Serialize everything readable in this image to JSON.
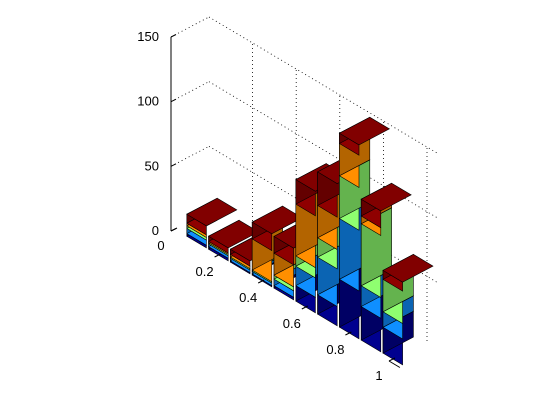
{
  "chart_data": {
    "type": "bar",
    "style": "3d-stacked",
    "x": [
      0.1,
      0.2,
      0.3,
      0.4,
      0.5,
      0.6,
      0.7,
      0.8,
      0.9,
      1.0
    ],
    "series": [
      {
        "color": "#00008f",
        "values": [
          2,
          2,
          1,
          1,
          2,
          12,
          15,
          37,
          26,
          20
        ]
      },
      {
        "color": "#0f8fff",
        "values": [
          4,
          2,
          2,
          2,
          5,
          15,
          29,
          47,
          16,
          12
        ]
      },
      {
        "color": "#8fff70",
        "values": [
          2,
          1,
          1,
          1,
          3,
          8,
          15,
          33,
          48,
          25
        ]
      },
      {
        "color": "#ff8f00",
        "values": [
          2,
          1,
          2,
          24,
          17,
          40,
          25,
          25,
          6,
          0
        ]
      },
      {
        "color": "#8f0000",
        "values": [
          7,
          4,
          4,
          13,
          13,
          19,
          26,
          8,
          13,
          7
        ]
      }
    ],
    "y_axis": {
      "range": [
        0,
        150
      ],
      "ticks": [
        "0",
        "50",
        "100",
        "150"
      ]
    },
    "x_axis": {
      "ticks": [
        "0",
        "0.2",
        "0.4",
        "0.6",
        "0.8",
        "1"
      ]
    },
    "grid": true,
    "legend": "none",
    "colormap": "jet"
  }
}
